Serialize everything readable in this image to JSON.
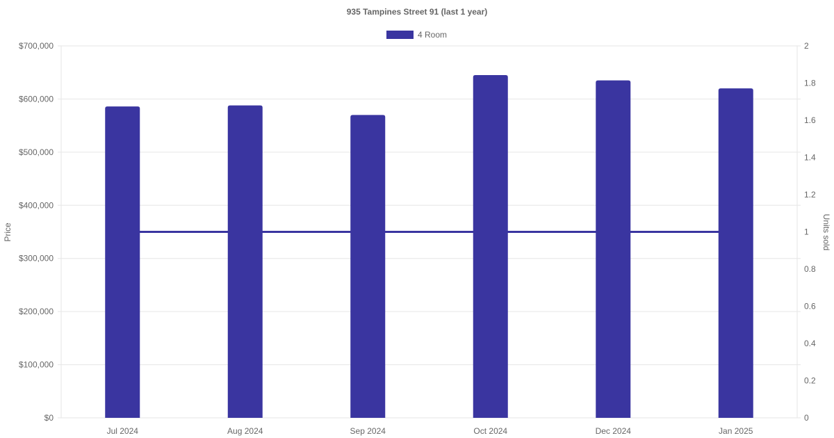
{
  "chart_data": {
    "type": "bar",
    "title": "935 Tampines Street 91 (last 1 year)",
    "categories": [
      "Jul 2024",
      "Aug 2024",
      "Sep 2024",
      "Oct 2024",
      "Dec 2024",
      "Jan 2025"
    ],
    "series": [
      {
        "name": "4 Room",
        "type": "bar",
        "axis": "left",
        "values": [
          586000,
          588000,
          570000,
          645000,
          635000,
          620000
        ]
      },
      {
        "type": "line",
        "axis": "right",
        "values": [
          1,
          1,
          1,
          1,
          1,
          1
        ]
      }
    ],
    "ylabel": "Price",
    "ylim": [
      0,
      700000
    ],
    "yticks": [
      "$0",
      "$100,000",
      "$200,000",
      "$300,000",
      "$400,000",
      "$500,000",
      "$600,000",
      "$700,000"
    ],
    "y2label": "Units sold",
    "y2lim": [
      0,
      2
    ],
    "y2ticks": [
      "0",
      "0.2",
      "0.4",
      "0.6",
      "0.8",
      "1",
      "1.2",
      "1.4",
      "1.6",
      "1.8",
      "2"
    ],
    "legend": "top",
    "grid": true,
    "color": "#3a35a0"
  }
}
